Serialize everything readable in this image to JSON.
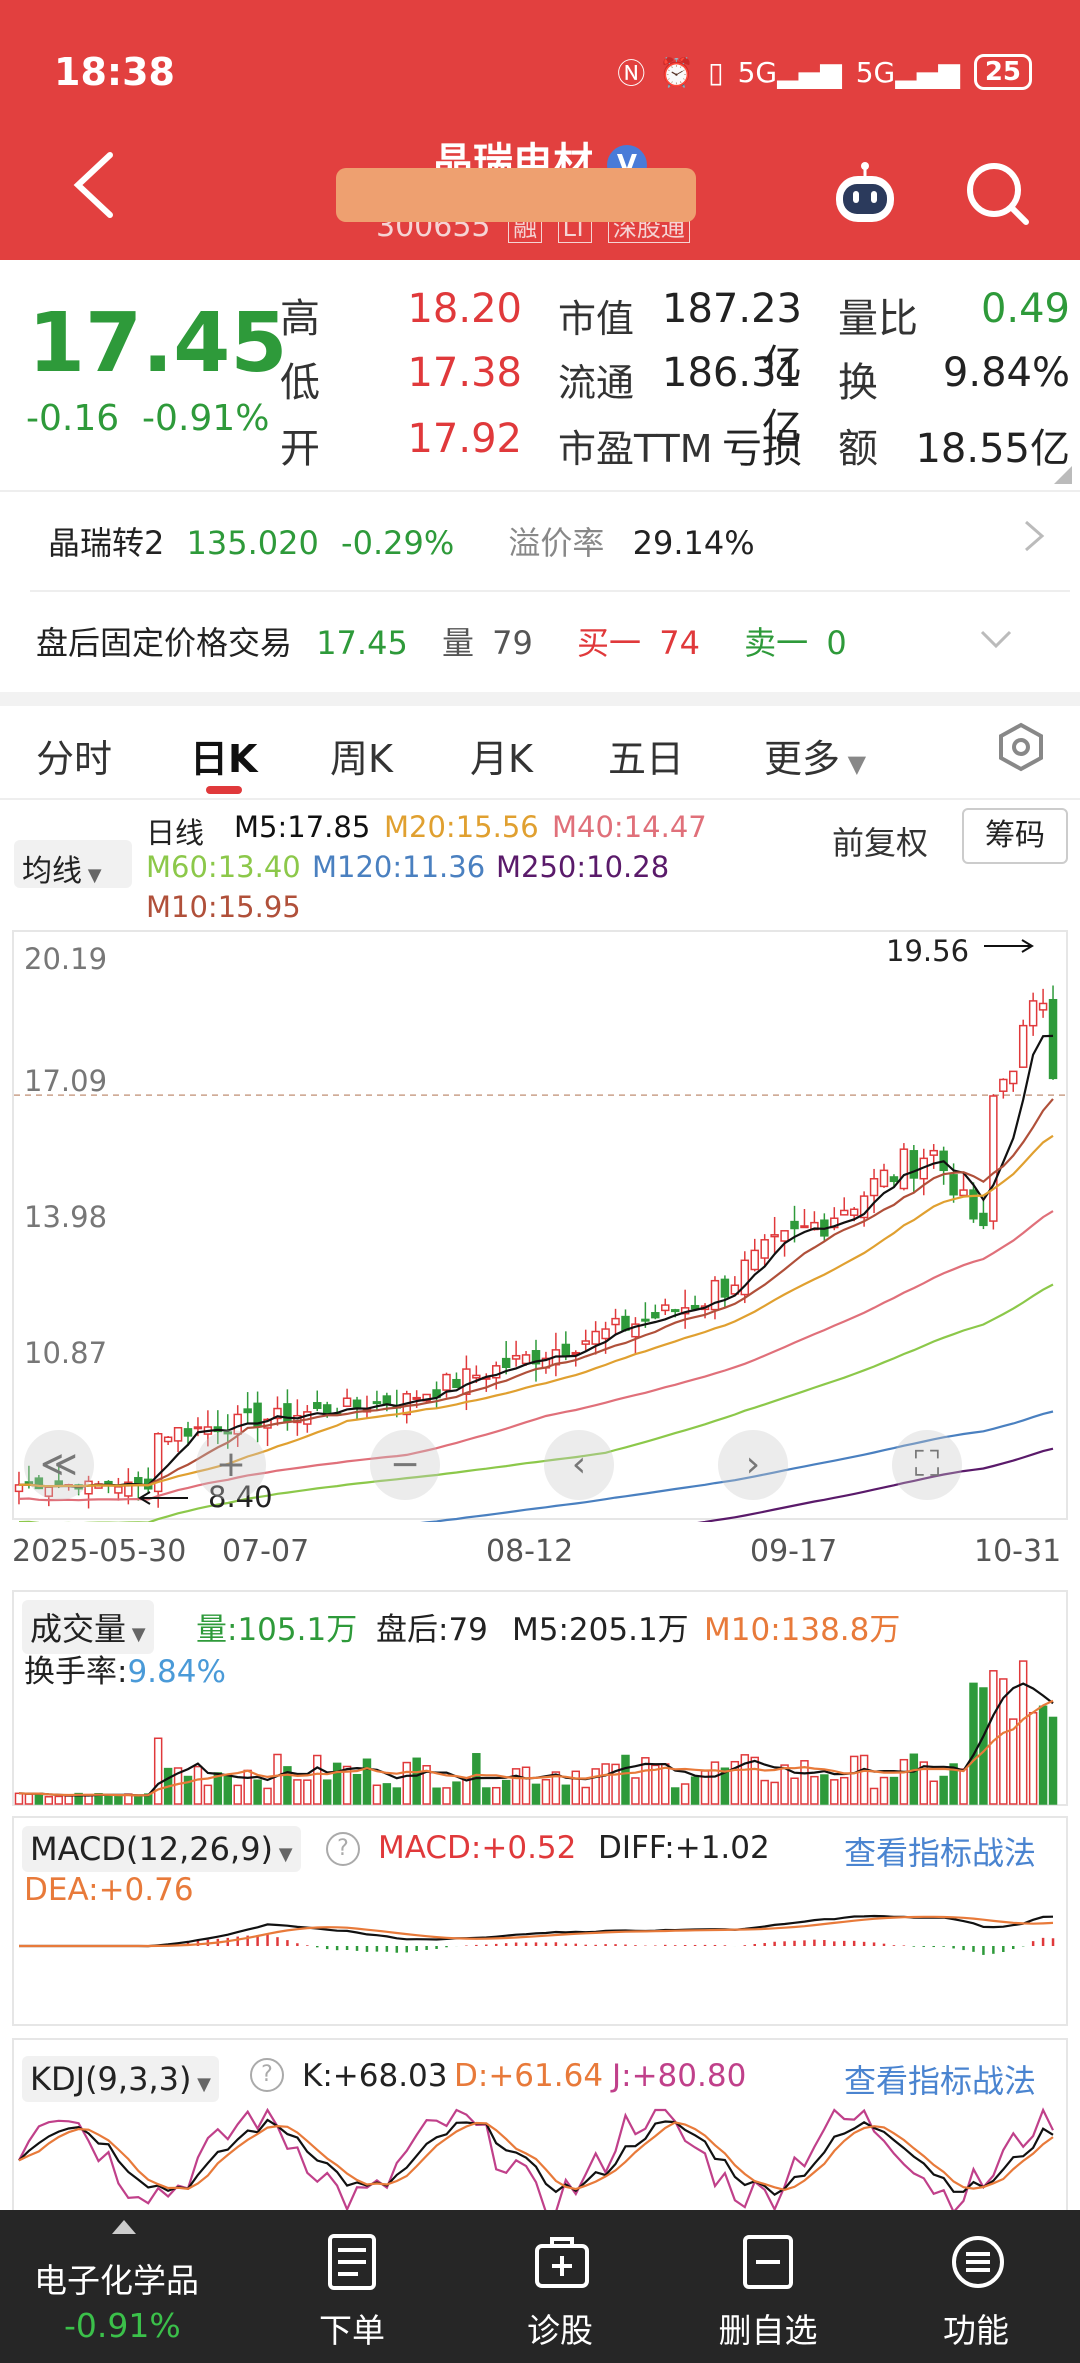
{
  "status": {
    "time": "18:38",
    "signal1": "5G",
    "signal2": "5G",
    "battery": "25"
  },
  "header": {
    "name": "晶瑞电材",
    "code": "300655",
    "badges": [
      "融",
      "LT",
      "深股通"
    ],
    "verified": "V"
  },
  "quote": {
    "price": "17.45",
    "change": "-0.16",
    "change_pct": "-0.91%",
    "high_label": "高",
    "high": "18.20",
    "low_label": "低",
    "low": "17.38",
    "open_label": "开",
    "open": "17.92",
    "mktcap_label": "市值",
    "mktcap": "187.23亿",
    "float_label": "流通",
    "float": "186.31亿",
    "pe_label": "市盈TTM",
    "pe": "亏损",
    "vr_label": "量比",
    "vr": "0.49",
    "turnover_label": "换",
    "turnover": "9.84%",
    "amount_label": "额",
    "amount": "18.55亿"
  },
  "convertible": {
    "name": "晶瑞转2",
    "price": "135.020",
    "change": "-0.29%",
    "premium_label": "溢价率",
    "premium": "29.14%"
  },
  "afterhours": {
    "label": "盘后固定价格交易",
    "price": "17.45",
    "vol_label": "量",
    "vol": "79",
    "buy_label": "买一",
    "buy": "74",
    "sell_label": "卖一",
    "sell": "0"
  },
  "tabs": [
    "分时",
    "日K",
    "周K",
    "月K",
    "五日",
    "更多"
  ],
  "ma": {
    "selector": "均线",
    "period": "日线",
    "m5": "M5:17.85",
    "m20": "M20:15.56",
    "m40": "M40:14.47",
    "m60": "M60:13.40",
    "m120": "M120:11.36",
    "m250": "M250:10.28",
    "m10": "M10:15.95",
    "restore": "前复权",
    "chips": "筹码"
  },
  "kline": {
    "y_labels": [
      "20.19",
      "17.09",
      "13.98",
      "10.87"
    ],
    "max_label": "19.56",
    "min_label": "8.40",
    "x_labels": [
      "2025-05-30",
      "07-07",
      "08-12",
      "09-17",
      "10-31"
    ]
  },
  "colors": {
    "up": "#e0393b",
    "down": "#2e9a3a",
    "header": "#e2403f",
    "m5": "#111111",
    "m10": "#b0503a",
    "m20": "#e0a030",
    "m40": "#e0707a",
    "m60": "#8cc84a",
    "m120": "#4a80c0",
    "m250": "#5a1a6a"
  },
  "volume": {
    "selector": "成交量",
    "vol": "量:105.1万",
    "after": "盘后:79",
    "m5": "M5:205.1万",
    "m10": "M10:138.8万",
    "turnover_label": "换手率:",
    "turnover": "9.84%"
  },
  "macd": {
    "selector": "MACD(12,26,9)",
    "macd": "MACD:+0.52",
    "diff": "DIFF:+1.02",
    "dea": "DEA:+0.76",
    "strategy": "查看指标战法"
  },
  "kdj": {
    "selector": "KDJ(9,3,3)",
    "k": "K:+68.03",
    "d": "D:+61.64",
    "j": "J:+80.80",
    "strategy": "查看指标战法"
  },
  "bottom": {
    "sector": "电子化学品",
    "sector_change": "-0.91%",
    "order": "下单",
    "diagnose": "诊股",
    "remove": "删自选",
    "func": "功能"
  }
}
